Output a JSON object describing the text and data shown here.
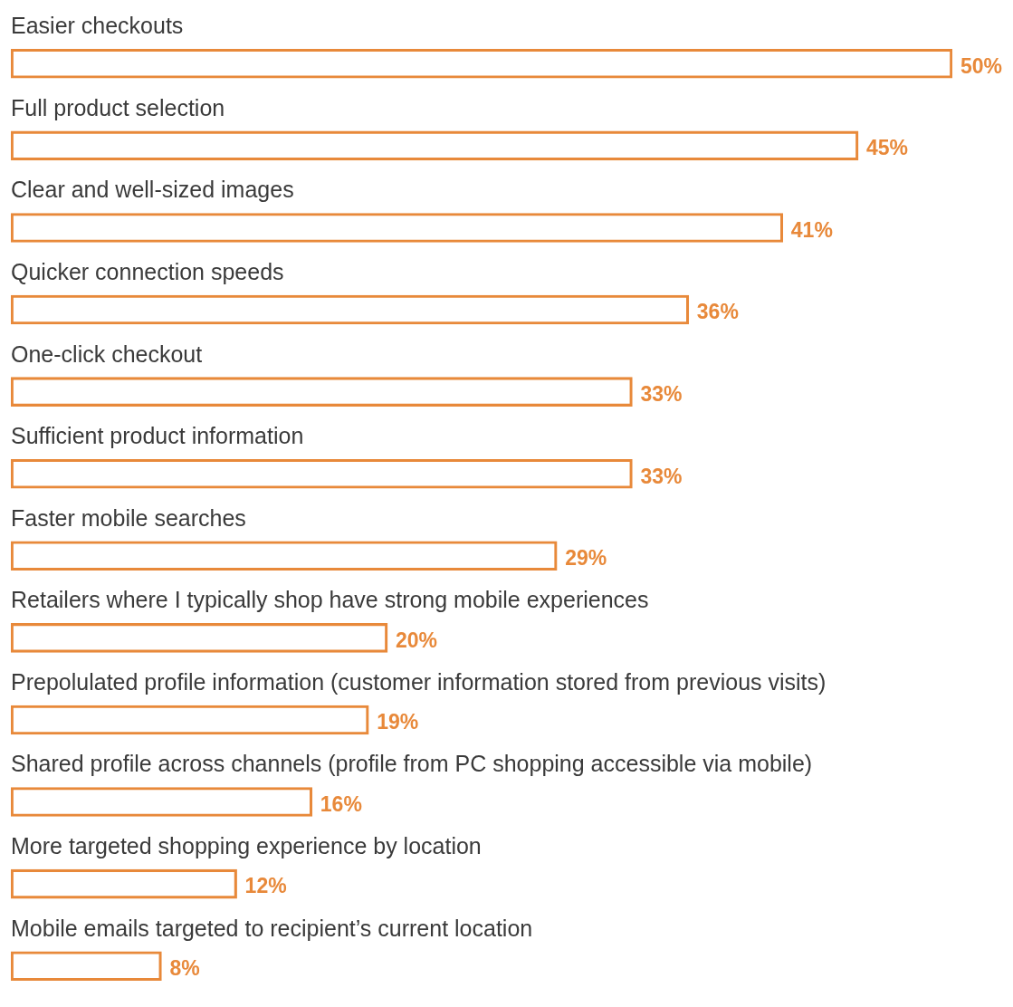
{
  "chart_data": {
    "type": "bar",
    "orientation": "horizontal",
    "color": "#e8893a",
    "categories": [
      "Easier checkouts",
      "Full product selection",
      "Clear and well-sized images",
      "Quicker connection speeds",
      "One-click checkout",
      "Sufficient product information",
      "Faster mobile searches",
      "Retailers where I typically shop have strong mobile experiences",
      "Prepolulated profile information (customer information stored from previous visits)",
      "Shared profile across channels (profile from PC shopping accessible via mobile)",
      "More targeted shopping experience by location",
      "Mobile emails targeted to recipient’s current location"
    ],
    "values": [
      50,
      45,
      41,
      36,
      33,
      33,
      29,
      20,
      19,
      16,
      12,
      8
    ],
    "value_labels": [
      "50%",
      "45%",
      "41%",
      "36%",
      "33%",
      "33%",
      "29%",
      "20%",
      "19%",
      "16%",
      "12%",
      "8%"
    ]
  }
}
